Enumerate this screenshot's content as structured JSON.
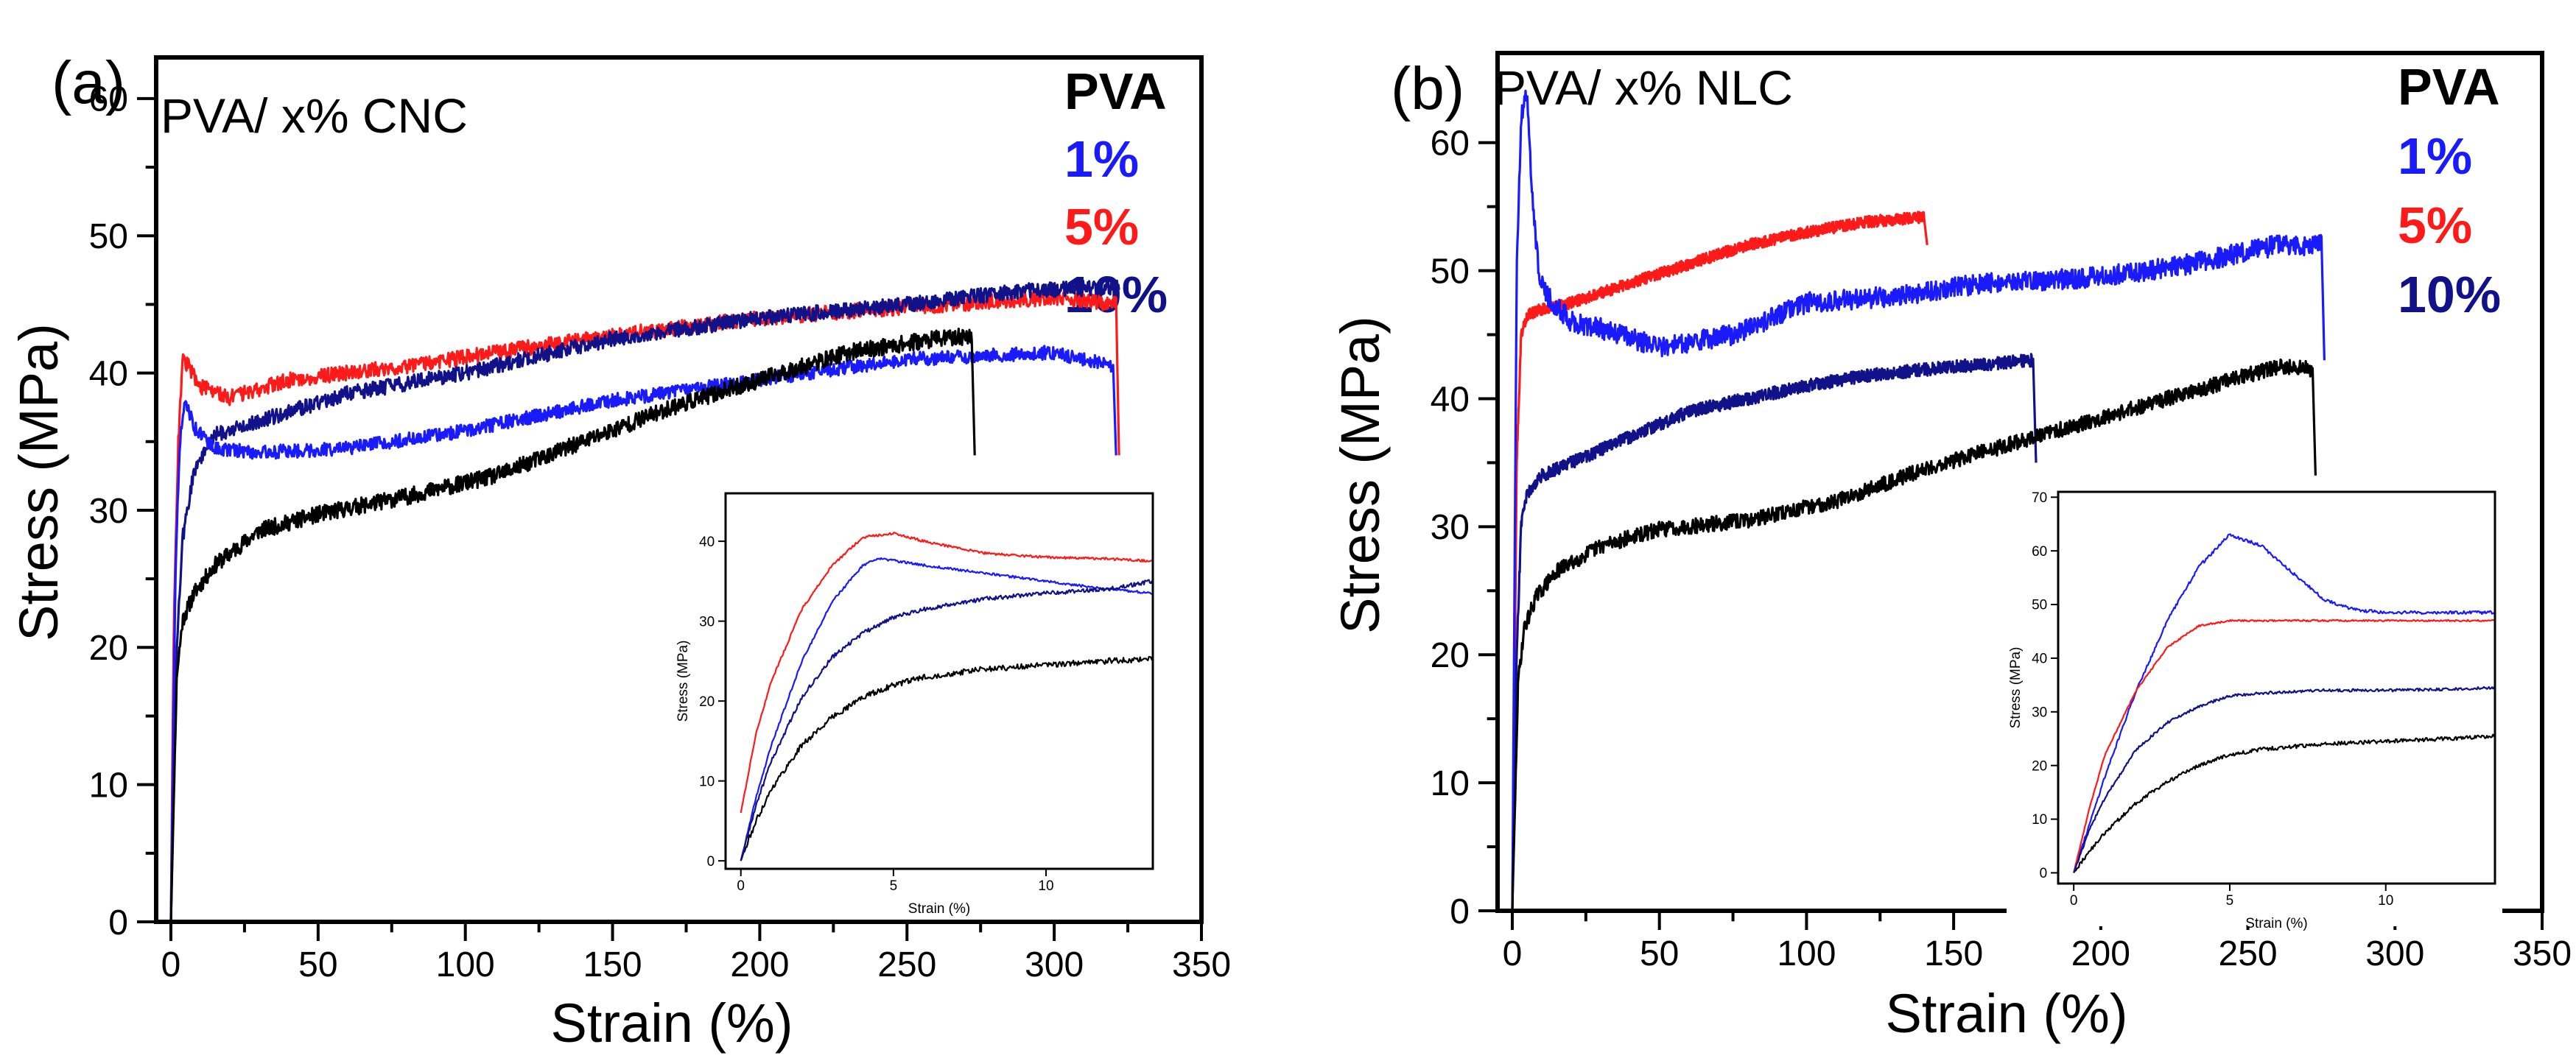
{
  "chart_data": [
    {
      "type": "line",
      "panel_label": "(a)",
      "title": "PVA/ x% CNC",
      "xlabel": "Strain (%)",
      "ylabel": "Stress (MPa)",
      "xlim": [
        -5,
        350
      ],
      "ylim": [
        0,
        63
      ],
      "xticks": [
        0,
        50,
        100,
        150,
        200,
        250,
        300,
        350
      ],
      "yticks": [
        0,
        10,
        20,
        30,
        40,
        50,
        60
      ],
      "legend": {
        "position": "top-right",
        "entries": [
          {
            "label": "PVA",
            "color": "#000000"
          },
          {
            "label": "1%",
            "color": "#1a1aff"
          },
          {
            "label": "5%",
            "color": "#ff1a1a"
          },
          {
            "label": "10%",
            "color": "#11118a"
          }
        ]
      },
      "series": [
        {
          "name": "PVA",
          "color": "#000000",
          "noise": 0.6,
          "break_to": 34,
          "x": [
            0,
            2,
            4,
            8,
            15,
            30,
            50,
            80,
            110,
            140,
            170,
            200,
            230,
            260,
            272
          ],
          "y": [
            0,
            18,
            22,
            24,
            26,
            28.5,
            29.7,
            31,
            32.5,
            35,
            37.5,
            39.5,
            41.5,
            42.5,
            42.7
          ]
        },
        {
          "name": "1%",
          "color": "#1a1aff",
          "noise": 0.5,
          "break_to": 34,
          "x": [
            0,
            1.5,
            3,
            5,
            8,
            15,
            30,
            60,
            100,
            150,
            200,
            250,
            300,
            320
          ],
          "y": [
            0,
            25,
            35,
            38,
            36,
            34.5,
            34.2,
            34.5,
            35.8,
            38,
            39.5,
            41,
            41.5,
            40.5
          ]
        },
        {
          "name": "5%",
          "color": "#ff1a1a",
          "noise": 0.55,
          "break_to": 34,
          "x": [
            0,
            1,
            2.5,
            4,
            6,
            10,
            20,
            40,
            80,
            120,
            160,
            200,
            250,
            300,
            321
          ],
          "y": [
            0,
            22,
            35,
            41,
            40.5,
            39,
            38.2,
            39.5,
            40.5,
            41.8,
            43,
            44,
            44.8,
            45.5,
            45
          ]
        },
        {
          "name": "10%",
          "color": "#11118a",
          "noise": 0.55,
          "break_to": null,
          "x": [
            0,
            2,
            4,
            8,
            15,
            30,
            60,
            100,
            150,
            200,
            250,
            290,
            322
          ],
          "y": [
            0,
            20,
            28,
            33,
            35.5,
            36.5,
            38.5,
            40,
            42.5,
            44,
            45,
            46,
            46.3
          ]
        }
      ],
      "inset": {
        "xlabel": "Strain (%)",
        "ylabel": "Stress (MPa)",
        "xlim": [
          -0.5,
          13.5
        ],
        "ylim": [
          -1,
          46
        ],
        "xticks": [
          0,
          5,
          10
        ],
        "yticks": [
          0,
          10,
          20,
          30,
          40
        ],
        "series": [
          {
            "name": "PVA",
            "color": "#000000",
            "noise": 0.35,
            "x": [
              0,
              0.5,
              1,
              2,
              3,
              4,
              5,
              6,
              8,
              10,
              12,
              13.5
            ],
            "y": [
              0,
              5,
              9,
              14.5,
              18,
              20.5,
              22,
              23,
              24,
              24.5,
              25,
              25.3
            ]
          },
          {
            "name": "1%",
            "color": "#1a1aff",
            "noise": 0.15,
            "x": [
              0,
              0.5,
              1,
              2,
              3,
              4,
              4.5,
              5,
              6,
              8,
              10,
              12,
              13.5
            ],
            "y": [
              0,
              8,
              14.5,
              25,
              32.5,
              37,
              37.8,
              37.6,
              37,
              36,
              35,
              34,
              33.5
            ]
          },
          {
            "name": "5%",
            "color": "#ff1a1a",
            "noise": 0.15,
            "x": [
              0,
              0.5,
              1,
              2,
              3,
              4,
              5,
              6,
              8,
              10,
              12,
              13.5
            ],
            "y": [
              6,
              16,
              22.5,
              31.5,
              37,
              40.5,
              41,
              40,
              38.5,
              38,
              37.8,
              37.5
            ]
          },
          {
            "name": "10%",
            "color": "#11118a",
            "noise": 0.25,
            "x": [
              0,
              0.5,
              1,
              2,
              3,
              4,
              5,
              6,
              8,
              10,
              12,
              13.5
            ],
            "y": [
              0,
              7,
              12.5,
              20.5,
              25.5,
              28.5,
              30.5,
              31.5,
              32.8,
              33.5,
              34,
              35
            ]
          }
        ]
      }
    },
    {
      "type": "line",
      "panel_label": "(b)",
      "title": "PVA/ x% NLC",
      "xlabel": "Strain (%)",
      "ylabel": "Stress (MPa)",
      "xlim": [
        -5,
        350
      ],
      "ylim": [
        0,
        67
      ],
      "xticks": [
        0,
        50,
        100,
        150,
        200,
        250,
        300,
        350
      ],
      "yticks": [
        0,
        10,
        20,
        30,
        40,
        50,
        60
      ],
      "legend": {
        "position": "top-right",
        "entries": [
          {
            "label": "PVA",
            "color": "#000000"
          },
          {
            "label": "1%",
            "color": "#1a1aff"
          },
          {
            "label": "5%",
            "color": "#ff1a1a"
          },
          {
            "label": "10%",
            "color": "#11118a"
          }
        ]
      },
      "series": [
        {
          "name": "PVA",
          "color": "#000000",
          "noise": 0.6,
          "break_to": 34,
          "x": [
            0,
            2,
            4,
            8,
            15,
            30,
            50,
            80,
            110,
            140,
            170,
            200,
            230,
            260,
            272
          ],
          "y": [
            0,
            18,
            22,
            24.5,
            26.5,
            28.5,
            29.8,
            30.5,
            32,
            34.5,
            36.5,
            38.5,
            40.5,
            42.5,
            42.3
          ]
        },
        {
          "name": "1%",
          "color": "#1a1aff",
          "noise": 0.8,
          "break_to": 43,
          "x": [
            0,
            1.5,
            3,
            5,
            7,
            9,
            12,
            20,
            30,
            50,
            75,
            100,
            130,
            160,
            200,
            230,
            260,
            275
          ],
          "y": [
            0,
            50,
            62,
            64,
            55,
            50,
            48,
            46,
            45.5,
            44,
            45,
            47.5,
            48,
            49,
            49.5,
            50.5,
            52,
            52
          ]
        },
        {
          "name": "5%",
          "color": "#ff1a1a",
          "noise": 0.45,
          "break_to": 52,
          "x": [
            0,
            1.5,
            3,
            5,
            10,
            20,
            40,
            60,
            80,
            100,
            120,
            140
          ],
          "y": [
            0,
            35,
            45,
            46.5,
            47,
            47.5,
            49,
            50.5,
            52,
            53,
            53.8,
            54.2
          ]
        },
        {
          "name": "10%",
          "color": "#11118a",
          "noise": 0.5,
          "break_to": 35,
          "x": [
            0,
            1.5,
            3,
            5,
            10,
            20,
            40,
            60,
            80,
            100,
            120,
            150,
            177
          ],
          "y": [
            0,
            20,
            30,
            32.5,
            34,
            35,
            37,
            39,
            40,
            41,
            41.8,
            42.5,
            43
          ]
        }
      ],
      "inset": {
        "xlabel": "Strain (%)",
        "ylabel": "Stress (MPa)",
        "xlim": [
          -0.5,
          13.5
        ],
        "ylim": [
          -2,
          71
        ],
        "xticks": [
          0,
          5,
          10
        ],
        "yticks": [
          0,
          10,
          20,
          30,
          40,
          50,
          60,
          70
        ],
        "series": [
          {
            "name": "PVA",
            "color": "#000000",
            "noise": 0.35,
            "x": [
              0,
              0.5,
              1,
              2,
              3,
              4,
              5,
              6,
              8,
              10,
              12,
              13.5
            ],
            "y": [
              0,
              4,
              7.5,
              13,
              17,
              20,
              22,
              23,
              24,
              24.5,
              25,
              25.5
            ]
          },
          {
            "name": "1%",
            "color": "#1a1aff",
            "noise": 0.3,
            "x": [
              0,
              0.5,
              1,
              2,
              3,
              4,
              5,
              6,
              7,
              8,
              9,
              10,
              12,
              13.5
            ],
            "y": [
              0,
              9,
              18,
              34,
              47,
              57,
              63,
              61,
              56,
              51,
              49,
              48.5,
              48.5,
              48.5
            ]
          },
          {
            "name": "5%",
            "color": "#ff1a1a",
            "noise": 0.15,
            "x": [
              0,
              0.5,
              1,
              2,
              3,
              4,
              5,
              6,
              8,
              10,
              12,
              13.5
            ],
            "y": [
              0,
              12,
              22,
              34,
              42,
              46,
              47,
              47,
              47,
              47,
              47,
              47
            ]
          },
          {
            "name": "10%",
            "color": "#11118a",
            "noise": 0.25,
            "x": [
              0,
              0.5,
              1,
              2,
              3,
              4,
              5,
              6,
              8,
              10,
              12,
              13.5
            ],
            "y": [
              0,
              8,
              14,
              23,
              28,
              31,
              33,
              33.5,
              34,
              34,
              34.2,
              34.5
            ]
          }
        ]
      }
    }
  ]
}
